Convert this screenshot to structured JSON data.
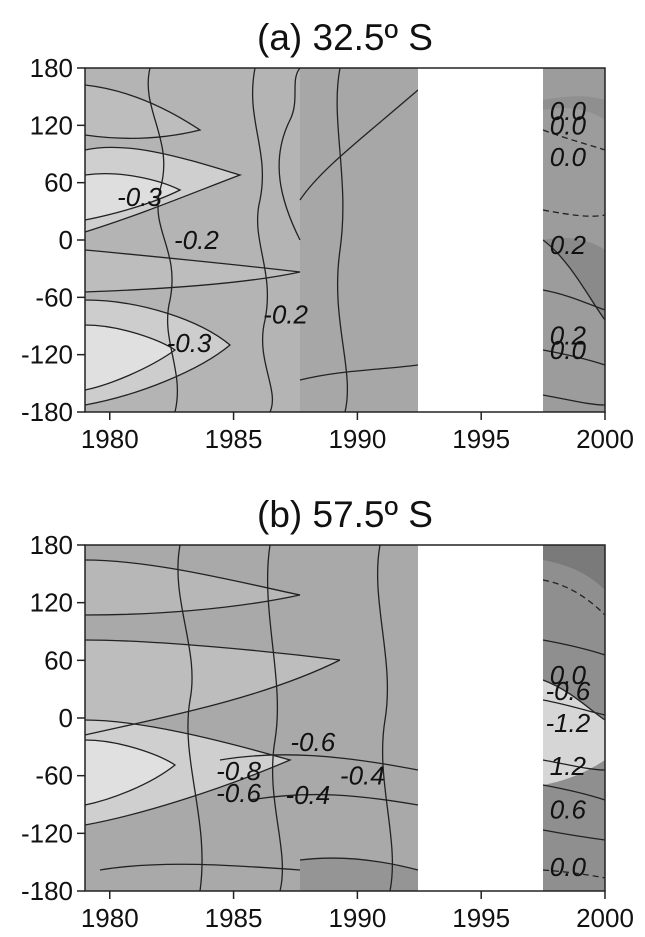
{
  "chart_data": [
    {
      "type": "heatmap",
      "title": "(a) 32.5º S",
      "xlabel": "",
      "ylabel": "",
      "xlim": [
        1979,
        2000
      ],
      "ylim": [
        -180,
        180
      ],
      "x_ticks": [
        "1980",
        "1985",
        "1990",
        "1995",
        "2000"
      ],
      "y_ticks": [
        "180",
        "120",
        "60",
        "0",
        "-60",
        "-120",
        "-180"
      ],
      "missing_x_range": [
        1992.5,
        1997.3
      ],
      "contour_labels": [
        {
          "text": "-0.3",
          "x": 1981.2,
          "y": 45
        },
        {
          "text": "-0.2",
          "x": 1983.5,
          "y": 0
        },
        {
          "text": "-0.2",
          "x": 1987.1,
          "y": -78
        },
        {
          "text": "-0.3",
          "x": 1983.2,
          "y": -108
        },
        {
          "text": "0.0",
          "x": 1998.5,
          "y": 135
        },
        {
          "text": "0.0",
          "x": 1998.5,
          "y": 120
        },
        {
          "text": "0.0",
          "x": 1998.5,
          "y": 87
        },
        {
          "text": "0.2",
          "x": 1998.5,
          "y": -5
        },
        {
          "text": "0.2",
          "x": 1998.5,
          "y": -100
        },
        {
          "text": "0.0",
          "x": 1998.5,
          "y": -115
        }
      ]
    },
    {
      "type": "heatmap",
      "title": "(b) 57.5º S",
      "xlabel": "",
      "ylabel": "",
      "xlim": [
        1979,
        2000
      ],
      "ylim": [
        -180,
        180
      ],
      "x_ticks": [
        "1980",
        "1985",
        "1990",
        "1995",
        "2000"
      ],
      "y_ticks": [
        "180",
        "120",
        "60",
        "0",
        "-60",
        "-120",
        "-180"
      ],
      "missing_x_range": [
        1992.5,
        1997.3
      ],
      "contour_labels": [
        {
          "text": "-0.6",
          "x": 1988.2,
          "y": -25
        },
        {
          "text": "-0.8",
          "x": 1985.2,
          "y": -55
        },
        {
          "text": "-0.4",
          "x": 1990.2,
          "y": -60
        },
        {
          "text": "-0.6",
          "x": 1985.2,
          "y": -78
        },
        {
          "text": "-0.4",
          "x": 1988.0,
          "y": -80
        },
        {
          "text": "0.0",
          "x": 1998.5,
          "y": 45
        },
        {
          "text": "-0.6",
          "x": 1998.5,
          "y": 28
        },
        {
          "text": "-1.2",
          "x": 1998.5,
          "y": -5
        },
        {
          "text": "1.2",
          "x": 1998.5,
          "y": -50
        },
        {
          "text": "0.6",
          "x": 1998.5,
          "y": -95
        },
        {
          "text": "0.0",
          "x": 1998.5,
          "y": -155
        }
      ]
    }
  ]
}
